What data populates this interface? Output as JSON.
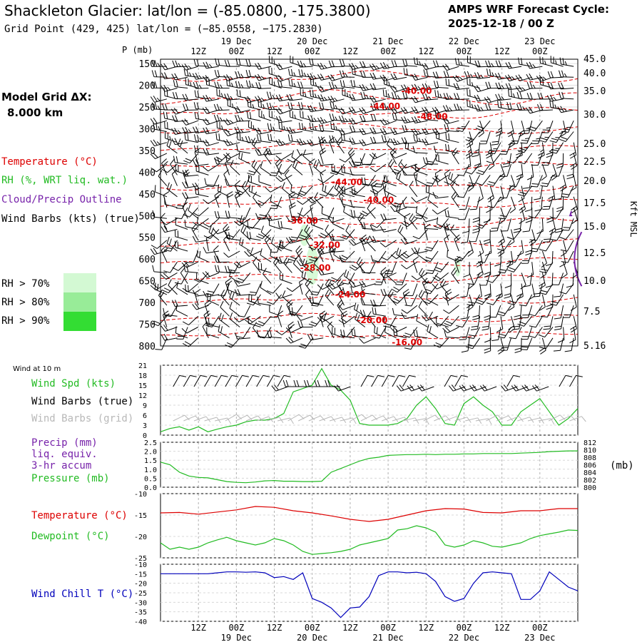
{
  "header": {
    "title": "Shackleton Glacier:  lat/lon = (-85.0800, -175.3800)",
    "subtitle": "Grid Point (429, 425) lat/lon = (−85.0558, −175.2830)",
    "forecast_label": "AMPS WRF Forecast Cycle:",
    "forecast_cycle": "2025-12-18 / 00  Z"
  },
  "model": {
    "grid_label": "Model Grid ΔX:",
    "grid_value": "8.000 km"
  },
  "legend": {
    "temperature": "Temperature (°C)",
    "rh": "RH (%, WRT liq. wat.)",
    "cloud": "Cloud/Precip Outline",
    "barbs": "Wind Barbs (kts) (true)",
    "rh70": "RH > 70%",
    "rh80": "RH > 80%",
    "rh90": "RH > 90%",
    "rh70_color": "#d3f9d3",
    "rh80_color": "#98ec98",
    "rh90_color": "#33dd33"
  },
  "time_axis": {
    "top_hours": [
      "12Z",
      "00Z",
      "12Z",
      "00Z",
      "12Z",
      "00Z",
      "12Z",
      "00Z",
      "12Z",
      "00Z"
    ],
    "top_dates": [
      "19 Dec",
      "20 Dec",
      "21 Dec",
      "22 Dec",
      "23 Dec"
    ],
    "bottom_hours": [
      "12Z",
      "00Z",
      "12Z",
      "00Z",
      "12Z",
      "00Z",
      "12Z",
      "00Z",
      "12Z",
      "00Z"
    ],
    "bottom_dates": [
      "19 Dec",
      "20 Dec",
      "21 Dec",
      "22 Dec",
      "23 Dec"
    ]
  },
  "colors": {
    "temperature": "#dd0000",
    "green": "#22bb22",
    "purple": "#7722aa",
    "blue": "#0000bb",
    "grid": "#aaaaaa"
  },
  "chart_data": [
    {
      "type": "contour",
      "title": "Upper-air cross section",
      "ylabel": "P (mb)",
      "y_ticks": [
        "150",
        "200",
        "250",
        "300",
        "350",
        "400",
        "450",
        "500",
        "550",
        "600",
        "650",
        "700",
        "750",
        "800"
      ],
      "y_range": [
        140,
        800
      ],
      "right_label": "Kft MSL",
      "right_ticks": [
        "45.0",
        "40.0",
        "35.0",
        "30.0",
        "25.0",
        "22.5",
        "20.0",
        "17.5",
        "15.0",
        "12.5",
        "10.0",
        "7.5",
        "5.16"
      ],
      "contour_labels": [
        {
          "text": "-40.00",
          "t": 81,
          "p": 213
        },
        {
          "text": "-44.00",
          "t": 71,
          "p": 248
        },
        {
          "text": "-48.00",
          "t": 86,
          "p": 272
        },
        {
          "text": "-44.00",
          "t": 59,
          "p": 423
        },
        {
          "text": "-40.00",
          "t": 69,
          "p": 464
        },
        {
          "text": "-36.00",
          "t": 45,
          "p": 512
        },
        {
          "text": "-32.00",
          "t": 52,
          "p": 568
        },
        {
          "text": "-28.00",
          "t": 49,
          "p": 620
        },
        {
          "text": "-24.00",
          "t": 60,
          "p": 682
        },
        {
          "text": "-20.00",
          "t": 67,
          "p": 741
        },
        {
          "text": "-16.00",
          "t": 78,
          "p": 792
        }
      ],
      "contours": [
        {
          "p0": 180,
          "amp": 14,
          "phase": 0.0
        },
        {
          "p0": 228,
          "amp": 18,
          "phase": 1.1
        },
        {
          "p0": 262,
          "amp": 16,
          "phase": 2.0
        },
        {
          "p0": 300,
          "amp": 12,
          "phase": 0.6
        },
        {
          "p0": 345,
          "amp": 10,
          "phase": 1.7
        },
        {
          "p0": 385,
          "amp": 12,
          "phase": 2.5
        },
        {
          "p0": 430,
          "amp": 14,
          "phase": 0.3
        },
        {
          "p0": 470,
          "amp": 12,
          "phase": 1.4
        },
        {
          "p0": 515,
          "amp": 14,
          "phase": 2.2
        },
        {
          "p0": 560,
          "amp": 12,
          "phase": 0.9
        },
        {
          "p0": 605,
          "amp": 12,
          "phase": 1.9
        },
        {
          "p0": 645,
          "amp": 10,
          "phase": 2.8
        },
        {
          "p0": 690,
          "amp": 12,
          "phase": 0.4
        },
        {
          "p0": 735,
          "amp": 10,
          "phase": 1.5
        },
        {
          "p0": 775,
          "amp": 10,
          "phase": 2.6
        }
      ],
      "rh_patches": [
        {
          "t0": 44,
          "t1": 47,
          "p0": 520,
          "p1": 570,
          "level": "rh70"
        },
        {
          "t0": 46,
          "t1": 50,
          "p0": 570,
          "p1": 660,
          "level": "rh70"
        },
        {
          "t0": 93,
          "t1": 95,
          "p0": 600,
          "p1": 640,
          "level": "rh70"
        }
      ],
      "cloud_outlines": [
        {
          "t": 130.5,
          "p": 600,
          "r": 50
        }
      ],
      "barb_levels": [
        150,
        175,
        200,
        225,
        250,
        275,
        300,
        325,
        350,
        375,
        400,
        425,
        450,
        475,
        500,
        525,
        550,
        575,
        600,
        625,
        650,
        675,
        700,
        725,
        750,
        775
      ]
    },
    {
      "type": "line",
      "title": "Wind at 10 m",
      "labels": [
        "Wind Spd (kts)",
        "Wind Barbs (true)",
        "Wind Barbs (grid)"
      ],
      "y_ticks": [
        "0",
        "3",
        "6",
        "9",
        "12",
        "15",
        "18",
        "21"
      ],
      "ylim": [
        0,
        21
      ],
      "series": [
        {
          "name": "Wind Spd (kts)",
          "color": "#22bb22",
          "x": [
            0,
            3,
            6,
            9,
            12,
            15,
            18,
            21,
            24,
            27,
            30,
            33,
            36,
            39,
            42,
            45,
            48,
            51,
            54,
            57,
            60,
            63,
            66,
            69,
            72,
            75,
            78,
            81,
            84,
            87,
            90,
            93,
            96,
            99,
            102,
            105,
            108,
            111,
            114,
            117,
            120,
            123,
            126,
            129,
            132
          ],
          "y": [
            1,
            2,
            2.5,
            1.5,
            2.5,
            1,
            1.8,
            2.5,
            3,
            4,
            4.5,
            4.5,
            5,
            6.5,
            13,
            14,
            15,
            20,
            15,
            13.5,
            10.5,
            3.5,
            3,
            3,
            3,
            3.5,
            5,
            9,
            11.5,
            8,
            3.5,
            3,
            9.5,
            11.5,
            9,
            7,
            3,
            3,
            7,
            9,
            11,
            7,
            3,
            5,
            8
          ]
        }
      ]
    },
    {
      "type": "line",
      "title": "Precip / Pressure",
      "labels": [
        "Precip (mm)",
        "liq. equiv.",
        "3-hr accum",
        "Pressure (mb)"
      ],
      "y_ticks_left": [
        "0.0",
        "0.5",
        "1.0",
        "1.5",
        "2.0",
        "2.5"
      ],
      "y_ticks_right": [
        "800",
        "802",
        "804",
        "806",
        "808",
        "810",
        "812"
      ],
      "right_unit": "(mb)",
      "ylim_right": [
        800,
        812
      ],
      "series": [
        {
          "name": "Pressure (mb)",
          "color": "#22bb22",
          "x": [
            0,
            3,
            6,
            9,
            12,
            15,
            18,
            21,
            24,
            27,
            30,
            33,
            36,
            39,
            42,
            45,
            48,
            51,
            54,
            57,
            60,
            63,
            66,
            69,
            72,
            75,
            78,
            81,
            84,
            87,
            90,
            93,
            96,
            99,
            102,
            105,
            108,
            111,
            114,
            117,
            120,
            123,
            126,
            129,
            132
          ],
          "y": [
            806.7,
            806,
            804,
            803,
            802.6,
            802.5,
            802,
            801.5,
            801.3,
            801.2,
            801.4,
            801.7,
            801.8,
            801.6,
            801.6,
            801.5,
            801.5,
            801.6,
            804,
            805,
            806,
            807,
            807.7,
            808,
            808.5,
            808.6,
            808.7,
            808.7,
            808.8,
            808.7,
            808.8,
            808.8,
            808.9,
            808.9,
            809,
            809,
            809,
            809,
            809.1,
            809.2,
            809.3,
            809.5,
            809.6,
            809.7,
            809.7
          ]
        }
      ]
    },
    {
      "type": "line",
      "title": "Temperature / Dewpoint",
      "labels": [
        "Temperature (°C)",
        "Dewpoint (°C)"
      ],
      "y_ticks": [
        "-10",
        "-15",
        "-20",
        "-25"
      ],
      "ylim": [
        -25,
        -10
      ],
      "series": [
        {
          "name": "Temperature (°C)",
          "color": "#dd0000",
          "x": [
            0,
            6,
            12,
            18,
            24,
            30,
            36,
            42,
            48,
            54,
            60,
            66,
            72,
            78,
            84,
            90,
            96,
            102,
            108,
            114,
            120,
            126,
            132
          ],
          "y": [
            -14.5,
            -14.4,
            -14.8,
            -14.3,
            -13.8,
            -13,
            -13.2,
            -14,
            -14.5,
            -15.2,
            -16,
            -16.5,
            -16,
            -15,
            -14,
            -13.5,
            -13.6,
            -14.4,
            -14.5,
            -14,
            -14,
            -13.5,
            -13.5
          ]
        },
        {
          "name": "Dewpoint (°C)",
          "color": "#22bb22",
          "x": [
            0,
            3,
            6,
            9,
            12,
            15,
            18,
            21,
            24,
            27,
            30,
            33,
            36,
            39,
            42,
            45,
            48,
            51,
            54,
            57,
            60,
            63,
            66,
            69,
            72,
            75,
            78,
            81,
            84,
            87,
            90,
            93,
            96,
            99,
            102,
            105,
            108,
            111,
            114,
            117,
            120,
            123,
            126,
            129,
            132
          ],
          "y": [
            -21.5,
            -23,
            -22.5,
            -23,
            -22.5,
            -21.5,
            -20.8,
            -20.2,
            -21,
            -21.5,
            -22,
            -21.5,
            -20.5,
            -21,
            -22,
            -23.5,
            -24.2,
            -24,
            -23.8,
            -23.5,
            -23,
            -22,
            -21.5,
            -21,
            -20.5,
            -18.5,
            -18.2,
            -17.5,
            -18,
            -19,
            -22,
            -22.5,
            -22,
            -21,
            -21.5,
            -22.3,
            -22.5,
            -22,
            -21.5,
            -20.5,
            -19.8,
            -19.4,
            -19,
            -18.5,
            -18.6
          ]
        }
      ]
    },
    {
      "type": "line",
      "title": "Wind Chill",
      "labels": [
        "Wind Chill T (°C)"
      ],
      "y_ticks": [
        "-10",
        "-15",
        "-20",
        "-25",
        "-30",
        "-35",
        "-40"
      ],
      "ylim": [
        -40,
        -10
      ],
      "series": [
        {
          "name": "Wind Chill T (°C)",
          "color": "#0000bb",
          "x": [
            0,
            6,
            12,
            15,
            18,
            21,
            24,
            27,
            30,
            33,
            36,
            39,
            42,
            45,
            48,
            51,
            54,
            57,
            60,
            63,
            66,
            69,
            72,
            75,
            78,
            81,
            84,
            87,
            90,
            93,
            96,
            99,
            102,
            105,
            108,
            111,
            114,
            117,
            120,
            123,
            126,
            129,
            132
          ],
          "y": [
            -15,
            -15,
            -15,
            -15,
            -14.5,
            -14,
            -14,
            -14.2,
            -14,
            -14.5,
            -17,
            -16.5,
            -18,
            -14.5,
            -28,
            -30,
            -33,
            -38,
            -33,
            -32.5,
            -27,
            -16,
            -14,
            -14,
            -14.5,
            -14.2,
            -15,
            -19,
            -27,
            -29.5,
            -28,
            -20,
            -14.5,
            -14,
            -14.5,
            -15,
            -28.5,
            -28.5,
            -24,
            -14,
            -18,
            -22,
            -24
          ]
        }
      ]
    }
  ]
}
